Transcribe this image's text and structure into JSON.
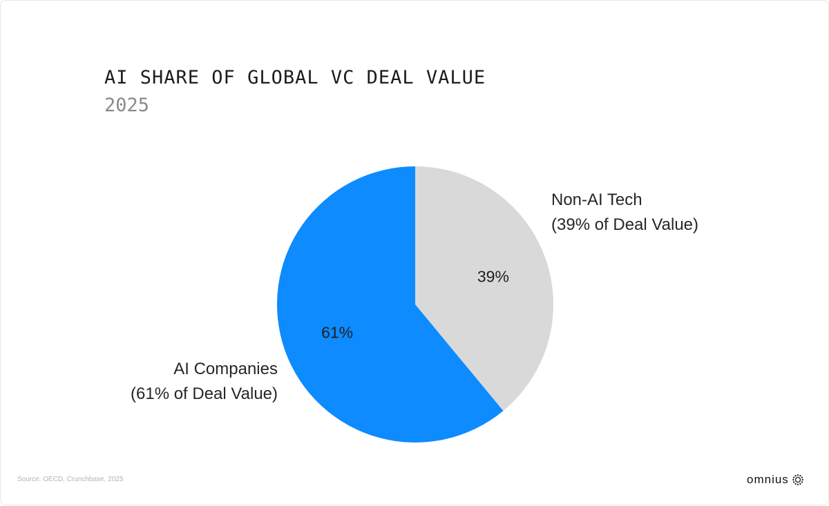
{
  "header": {
    "title": "AI SHARE OF GLOBAL VC DEAL VALUE",
    "subtitle": "2025"
  },
  "chart_data": {
    "type": "pie",
    "title": "AI SHARE OF GLOBAL VC DEAL VALUE",
    "subtitle": "2025",
    "slices": [
      {
        "name": "Non-AI Tech",
        "value": 39,
        "label": "39%",
        "callout": [
          "Non-AI Tech",
          "(39% of Deal Value)"
        ],
        "color": "#d9d9d9"
      },
      {
        "name": "AI Companies",
        "value": 61,
        "label": "61%",
        "callout": [
          "AI Companies",
          "(61% of Deal Value)"
        ],
        "color": "#0d8bff"
      }
    ],
    "start_angle": "12 o'clock",
    "direction": "clockwise",
    "legend": "none"
  },
  "footer": {
    "source": "Source: OECD, Crunchbase, 2025",
    "brand": "omnius",
    "brand_icon": "dotted-sunburst-icon"
  }
}
